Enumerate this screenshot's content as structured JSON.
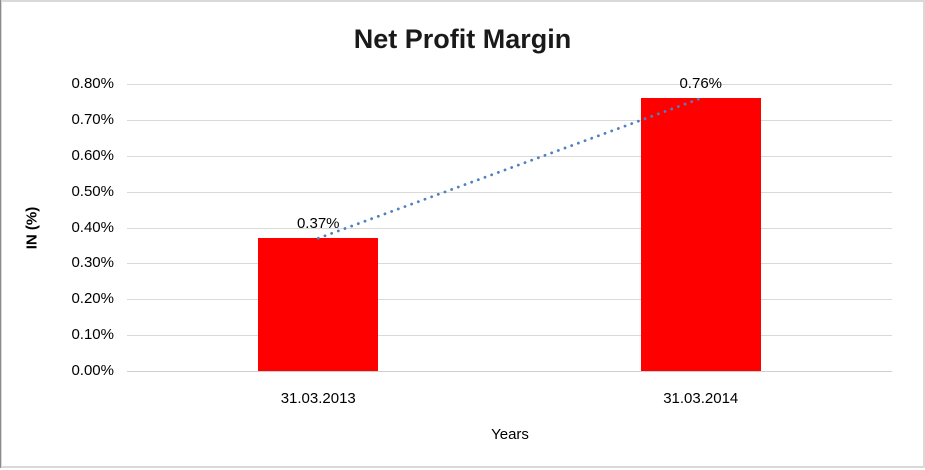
{
  "window": {
    "background": "#ffffff",
    "frame_border_color": "#d9d9d9"
  },
  "chart_data": {
    "type": "bar",
    "title": "Net Profit Margin",
    "categories": [
      "31.03.2013",
      "31.03.2014"
    ],
    "values": [
      0.37,
      0.76
    ],
    "data_labels": [
      "0.37%",
      "0.76%"
    ],
    "xlabel": "Years",
    "ylabel": "IN (%)",
    "ylim": [
      0,
      0.8
    ],
    "ytick_step": 0.1,
    "ytick_labels": [
      "0.00%",
      "0.10%",
      "0.20%",
      "0.30%",
      "0.40%",
      "0.50%",
      "0.60%",
      "0.70%",
      "0.80%"
    ],
    "grid": true,
    "gridline_color": "#d9d9d9",
    "legend_position": "none",
    "bar_color": "#ff0000",
    "trendline": {
      "style": "dotted",
      "color": "#4f81bd",
      "connects": [
        "0.37%",
        "0.76%"
      ]
    }
  }
}
